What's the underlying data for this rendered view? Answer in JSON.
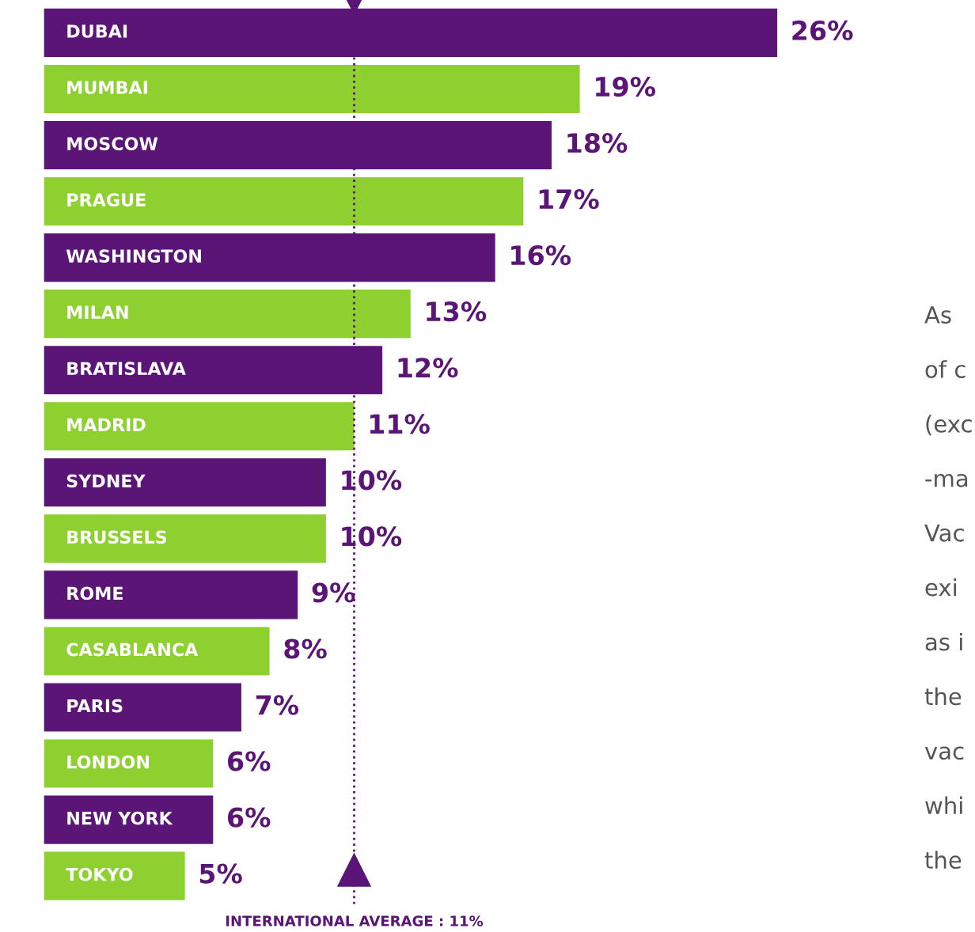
{
  "chart_data": {
    "type": "bar",
    "orientation": "horizontal",
    "categories": [
      "DUBAI",
      "MUMBAI",
      "MOSCOW",
      "PRAGUE",
      "WASHINGTON",
      "MILAN",
      "BRATISLAVA",
      "MADRID",
      "SYDNEY",
      "BRUSSELS",
      "ROME",
      "CASABLANCA",
      "PARIS",
      "LONDON",
      "NEW YORK",
      "TOKYO"
    ],
    "values": [
      26,
      19,
      18,
      17,
      16,
      13,
      12,
      11,
      10,
      10,
      9,
      8,
      7,
      6,
      6,
      5
    ],
    "colors": [
      "#5b1576",
      "#8fd031",
      "#5b1576",
      "#8fd031",
      "#5b1576",
      "#8fd031",
      "#5b1576",
      "#8fd031",
      "#5b1576",
      "#8fd031",
      "#5b1576",
      "#8fd031",
      "#5b1576",
      "#8fd031",
      "#5b1576",
      "#8fd031"
    ],
    "value_labels": [
      "26%",
      "19%",
      "18%",
      "17%",
      "16%",
      "13%",
      "12%",
      "11%",
      "10%",
      "10%",
      "9%",
      "8%",
      "7%",
      "6%",
      "6%",
      "5%"
    ],
    "ref_lines": [
      {
        "axis": "x",
        "value": 11,
        "label": "INTERNATIONAL AVERAGE : 11%",
        "color": "#5b1576",
        "line_style": "dotted"
      }
    ],
    "annotations": [
      "As",
      "of c",
      "(exc",
      "-ma",
      "Vac",
      "exi",
      "as i",
      "the",
      "vac",
      "whi",
      "the"
    ]
  }
}
